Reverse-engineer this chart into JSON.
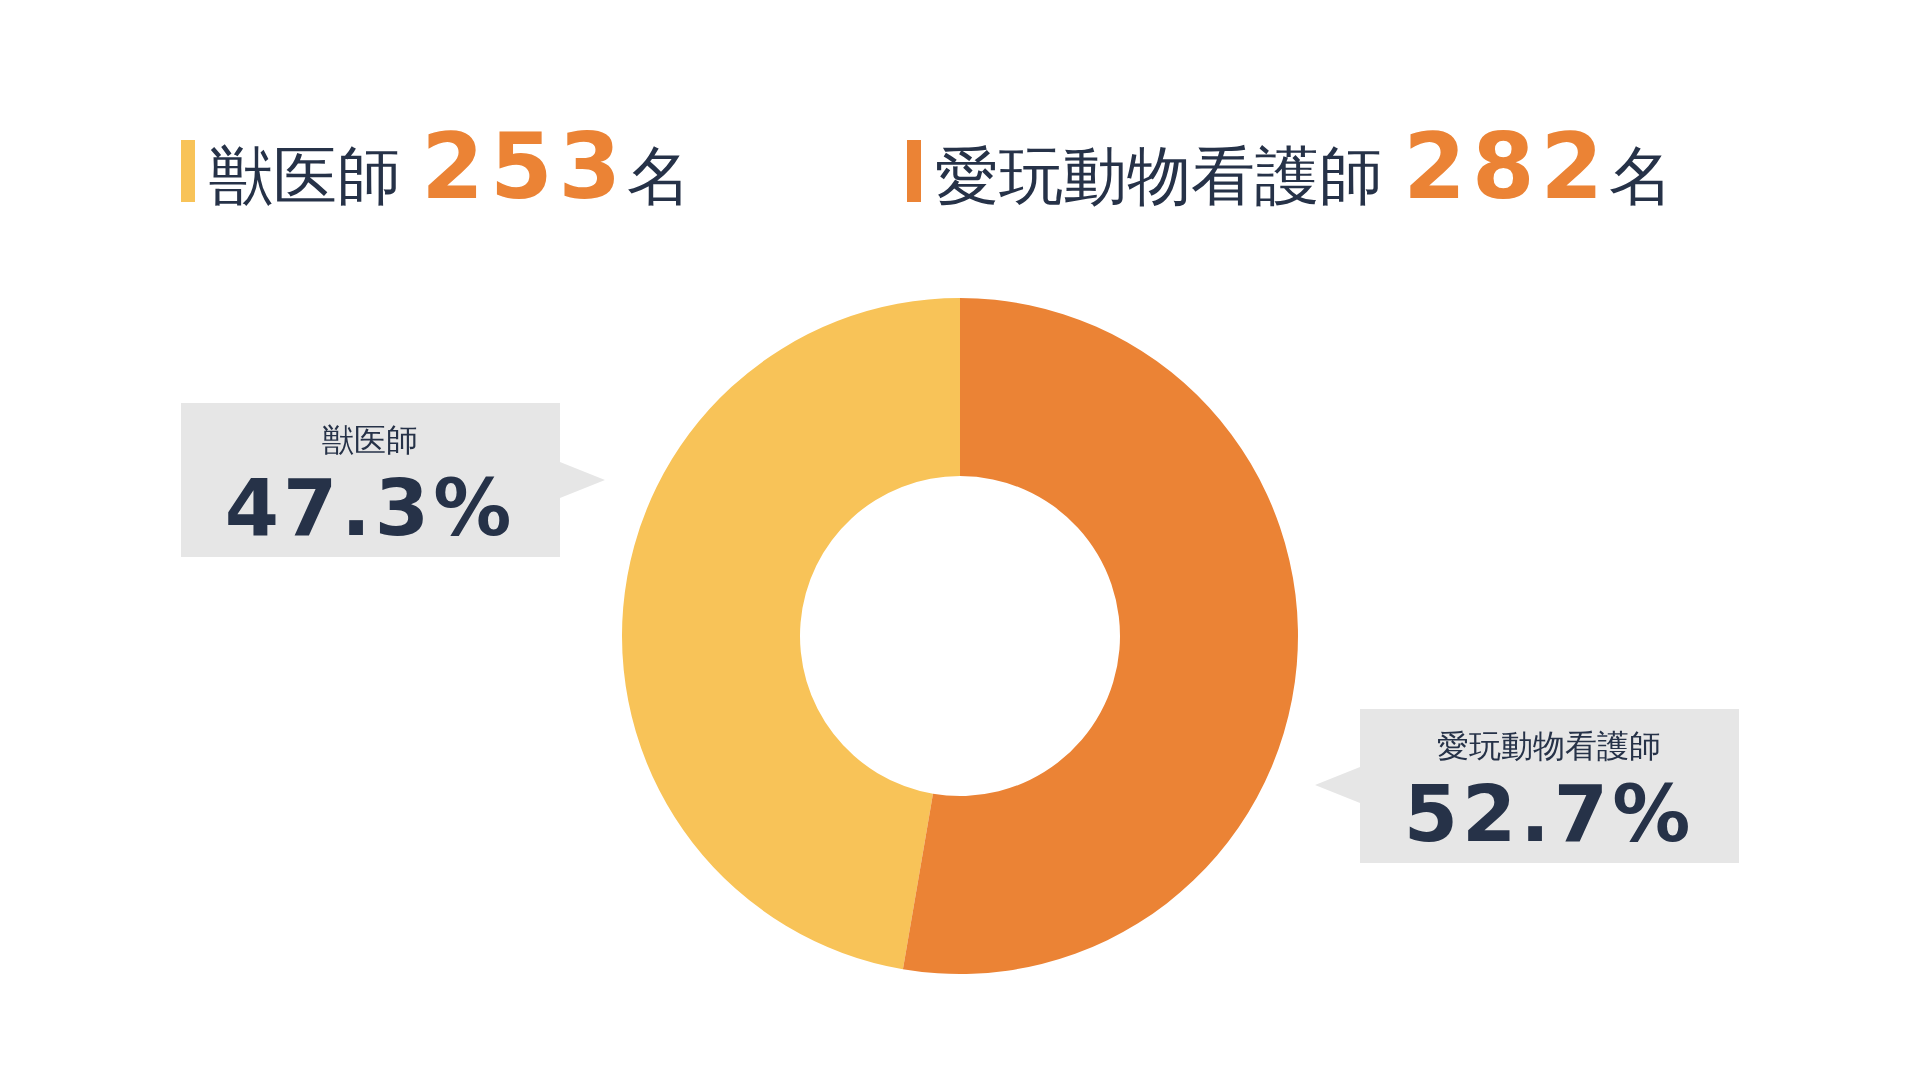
{
  "chart_data": {
    "type": "donut",
    "categories": [
      "獣医師",
      "愛玩動物看護師"
    ],
    "values": [
      47.3,
      52.7
    ],
    "colors": [
      "#f8c358",
      "#eb8335"
    ],
    "value_labels": [
      "47.3%",
      "52.7%"
    ],
    "annotations": [
      "獣医師 253名",
      "愛玩動物看護師 282名"
    ]
  }
}
